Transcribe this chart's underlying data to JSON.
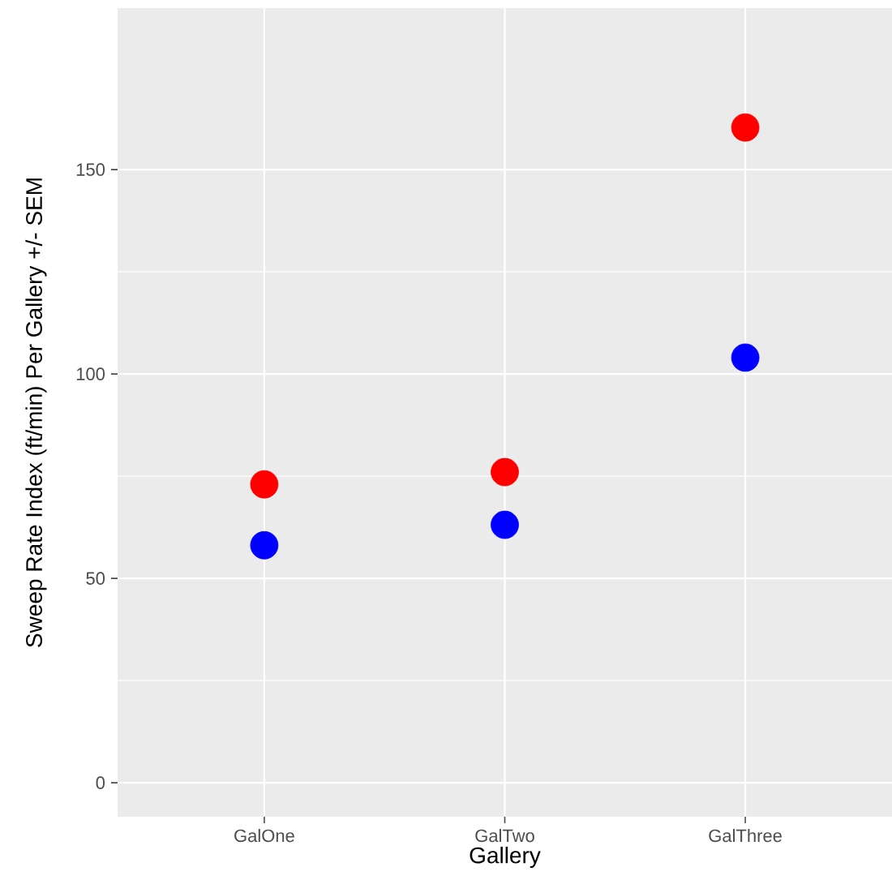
{
  "chart_data": {
    "type": "scatter",
    "xlabel": "Gallery",
    "ylabel": "Sweep Rate Index (ft/min) Per Gallery +/- SEM",
    "categories": [
      "GalOne",
      "GalTwo",
      "GalThree"
    ],
    "series": [
      {
        "color": "#ff0000",
        "values": [
          73.0,
          76.0,
          160.3
        ]
      },
      {
        "color": "#0000ff",
        "values": [
          58.1,
          63.1,
          104.0
        ]
      }
    ],
    "ylim": [
      -8.3,
      189.5
    ],
    "yticks": [
      0,
      50,
      100,
      150
    ],
    "grid": true,
    "marker": "circle"
  }
}
